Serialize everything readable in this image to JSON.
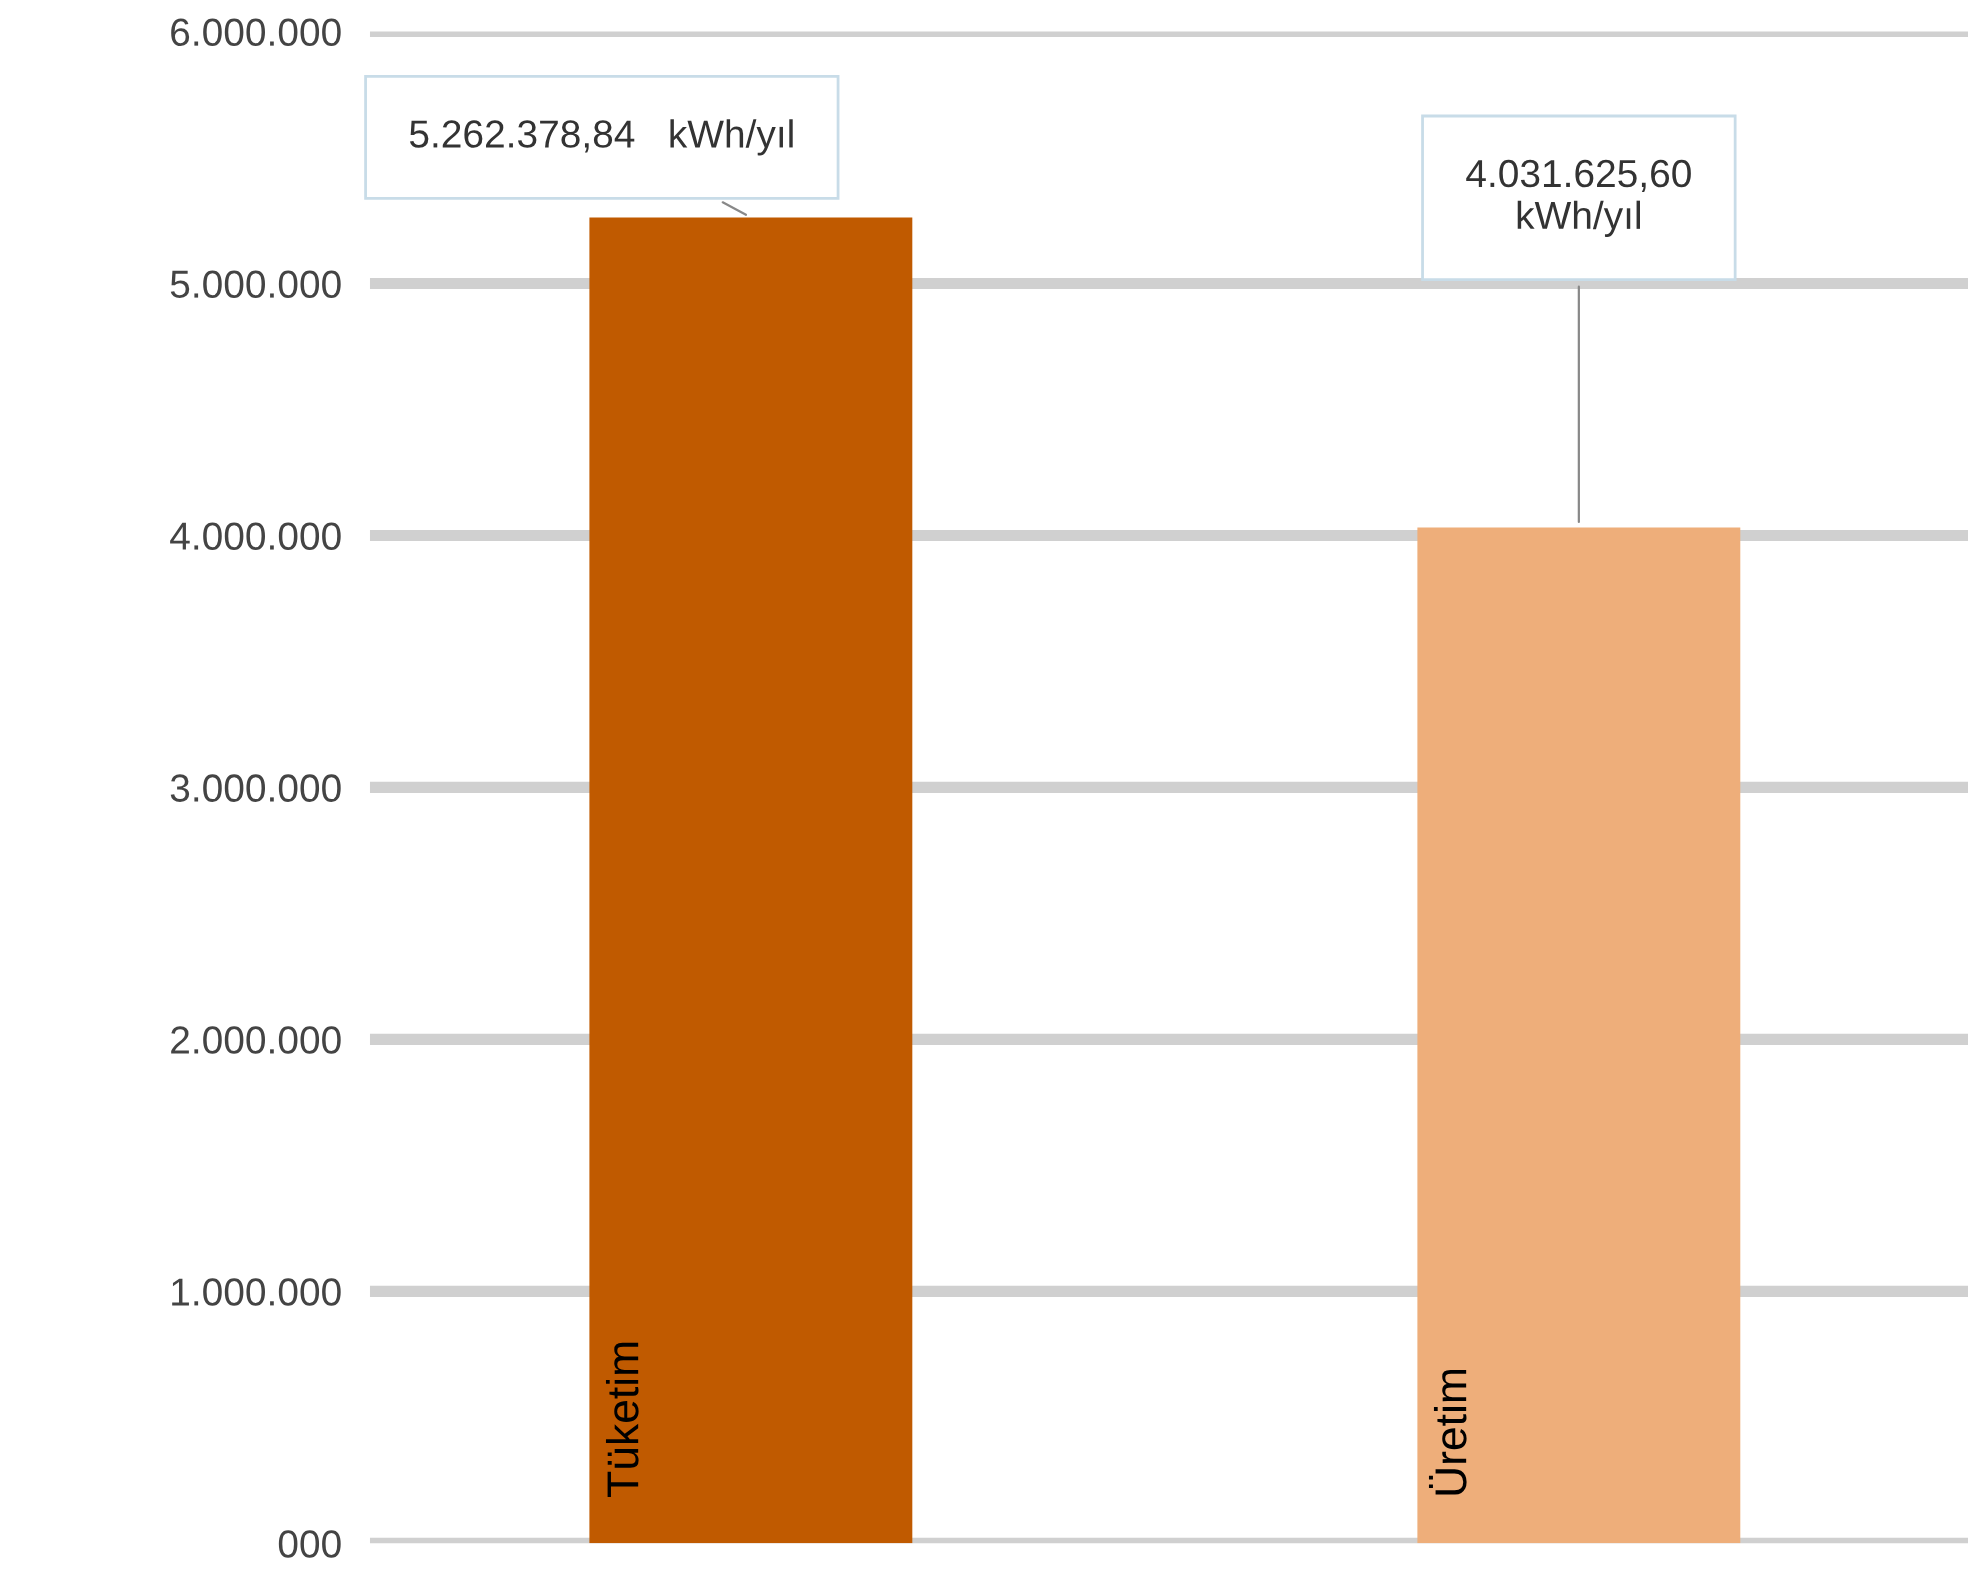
{
  "chart_data": {
    "type": "bar",
    "categories": [
      "Tüketim",
      "Üretim"
    ],
    "values": [
      5262378.84,
      4031625.6
    ],
    "colors": [
      "#c05a00",
      "#eeae7a"
    ],
    "value_labels": [
      "5.262.378,84   kWh/yıl",
      "4.031.625,60\nkWh/yıl"
    ],
    "ylim": [
      0,
      6000000
    ],
    "yticks": [
      {
        "value": 0,
        "label": "000"
      },
      {
        "value": 1000000,
        "label": "1.000.000"
      },
      {
        "value": 2000000,
        "label": "2.000.000"
      },
      {
        "value": 3000000,
        "label": "3.000.000"
      },
      {
        "value": 4000000,
        "label": "4.000.000"
      },
      {
        "value": 5000000,
        "label": "5.000.000"
      },
      {
        "value": 6000000,
        "label": "6.000.000"
      }
    ],
    "grid": "y"
  }
}
